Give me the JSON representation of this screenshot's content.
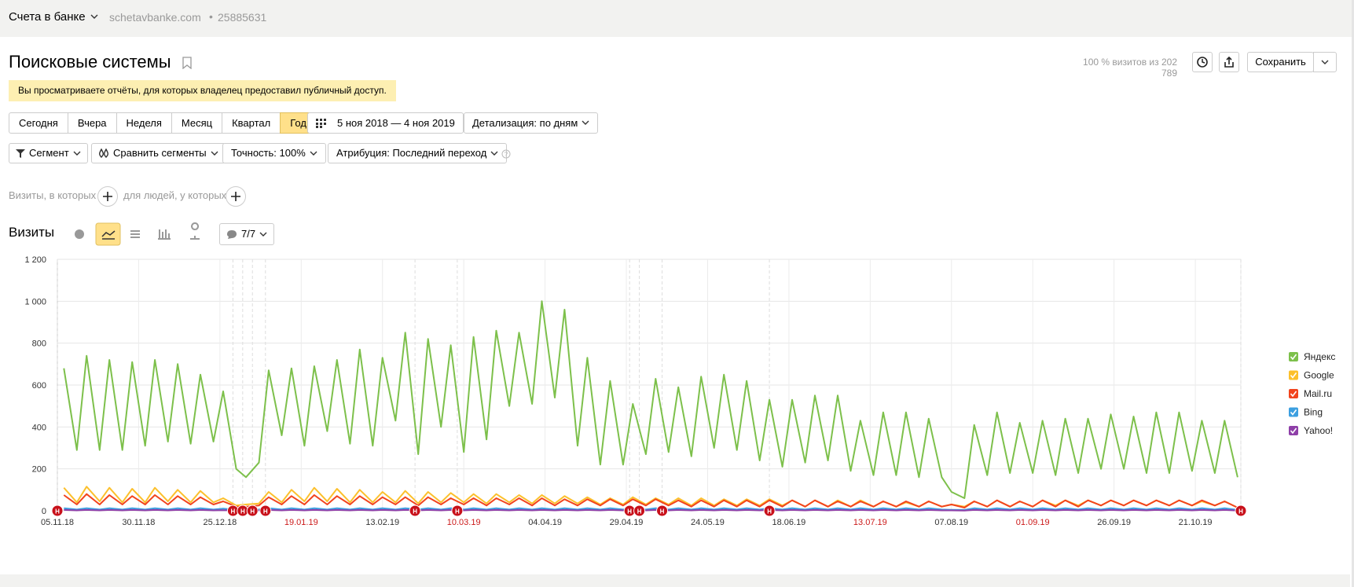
{
  "header": {
    "account": "Счета в банке",
    "site": "schetavbanke.com",
    "counter": "25885631"
  },
  "report": {
    "title": "Поисковые системы",
    "visits_share": "100 % визитов из 202 789",
    "save": "Сохранить",
    "notice": "Вы просматриваете отчёты, для которых владелец предоставил публичный доступ."
  },
  "periods": [
    "Сегодня",
    "Вчера",
    "Неделя",
    "Месяц",
    "Квартал",
    "Год"
  ],
  "active_period": 5,
  "date_range": "5 ноя 2018 — 4 ноя 2019",
  "detail": "Детализация: по дням",
  "filters": [
    "Сегмент",
    "Сравнить сегменты",
    "Точность: 100%",
    "Атрибуция: Последний переход"
  ],
  "segment": {
    "visits_where": "Визиты, в которых",
    "people_where": "для людей, у которых"
  },
  "chart_panel": {
    "metric": "Визиты",
    "annotations_count": "7/7"
  },
  "chart_data": {
    "type": "line",
    "x": [
      2,
      6,
      9,
      13,
      16,
      20,
      23,
      27,
      30,
      34,
      37,
      41,
      44,
      48,
      51,
      55,
      58,
      62,
      65,
      69,
      72,
      76,
      79,
      83,
      86,
      90,
      93,
      97,
      100,
      104,
      107,
      111,
      114,
      118,
      121,
      125,
      128,
      132,
      135,
      139,
      142,
      146,
      149,
      153,
      156,
      160,
      163,
      167,
      170,
      174,
      177,
      181,
      184,
      188,
      191,
      195,
      198,
      202,
      205,
      209,
      212,
      216,
      219,
      223,
      226,
      230,
      233,
      237,
      240,
      244,
      247,
      251,
      254,
      258,
      261,
      265,
      268,
      272,
      275,
      279,
      282,
      286,
      289,
      293,
      296,
      300,
      303,
      307,
      310,
      314,
      317,
      321,
      324,
      328,
      331,
      335,
      338,
      342,
      345,
      349,
      352,
      356,
      359,
      363
    ],
    "xlim": [
      0,
      364
    ],
    "xticks": [
      {
        "value": 0,
        "label": "05.11.18"
      },
      {
        "value": 25,
        "label": "30.11.18"
      },
      {
        "value": 50,
        "label": "25.12.18"
      },
      {
        "value": 75,
        "label": "19.01.19",
        "color": "#cc1a1a"
      },
      {
        "value": 100,
        "label": "13.02.19"
      },
      {
        "value": 125,
        "label": "10.03.19",
        "color": "#cc1a1a"
      },
      {
        "value": 150,
        "label": "04.04.19"
      },
      {
        "value": 175,
        "label": "29.04.19"
      },
      {
        "value": 200,
        "label": "24.05.19"
      },
      {
        "value": 225,
        "label": "18.06.19"
      },
      {
        "value": 250,
        "label": "13.07.19",
        "color": "#cc1a1a"
      },
      {
        "value": 275,
        "label": "07.08.19"
      },
      {
        "value": 300,
        "label": "01.09.19",
        "color": "#cc1a1a"
      },
      {
        "value": 325,
        "label": "26.09.19"
      },
      {
        "value": 350,
        "label": "21.10.19"
      }
    ],
    "ylim": [
      0,
      1200
    ],
    "yticks": [
      0,
      200,
      400,
      600,
      800,
      {
        "value": 1000,
        "label": "1 000"
      },
      {
        "value": 1200,
        "label": "1 200"
      }
    ],
    "grid": true,
    "legend": "right",
    "series": [
      {
        "name": "Яндекс",
        "color": "#7dc04b",
        "values": [
          680,
          290,
          740,
          290,
          720,
          290,
          710,
          310,
          720,
          330,
          700,
          320,
          650,
          330,
          570,
          200,
          160,
          230,
          670,
          360,
          680,
          310,
          690,
          380,
          720,
          320,
          770,
          310,
          730,
          430,
          850,
          270,
          820,
          400,
          790,
          280,
          830,
          340,
          860,
          500,
          850,
          510,
          1000,
          540,
          960,
          310,
          730,
          220,
          620,
          220,
          510,
          270,
          630,
          280,
          590,
          260,
          640,
          300,
          650,
          290,
          620,
          240,
          530,
          210,
          530,
          230,
          550,
          240,
          550,
          190,
          430,
          170,
          470,
          170,
          470,
          160,
          440,
          160,
          90,
          60,
          410,
          170,
          470,
          180,
          420,
          180,
          430,
          170,
          440,
          180,
          440,
          200,
          460,
          200,
          450,
          180,
          470,
          180,
          470,
          190,
          430,
          180,
          430,
          160
        ]
      },
      {
        "name": "Google",
        "color": "#fcc02c",
        "values": [
          110,
          40,
          115,
          45,
          110,
          40,
          105,
          40,
          110,
          45,
          100,
          40,
          95,
          40,
          60,
          25,
          30,
          35,
          90,
          40,
          100,
          45,
          110,
          45,
          105,
          40,
          100,
          40,
          90,
          40,
          95,
          35,
          90,
          40,
          85,
          40,
          80,
          35,
          80,
          40,
          75,
          35,
          75,
          35,
          70,
          35,
          65,
          30,
          60,
          30,
          65,
          30,
          60,
          30,
          60,
          25,
          60,
          25,
          55,
          25,
          55,
          25,
          55,
          25,
          50,
          20,
          50,
          20,
          50,
          20,
          50,
          20,
          45,
          20,
          40,
          20,
          45,
          20,
          30,
          20,
          45,
          20,
          50,
          20,
          45,
          20,
          50,
          25,
          50,
          25,
          50,
          25,
          50,
          25,
          50,
          25,
          50,
          25,
          50,
          25,
          45,
          25,
          45,
          15
        ]
      },
      {
        "name": "Mail.ru",
        "color": "#f2441d",
        "values": [
          75,
          30,
          80,
          30,
          75,
          30,
          70,
          30,
          75,
          30,
          70,
          30,
          65,
          30,
          45,
          20,
          20,
          25,
          65,
          30,
          70,
          30,
          75,
          30,
          70,
          30,
          70,
          30,
          65,
          30,
          65,
          25,
          65,
          30,
          60,
          30,
          60,
          25,
          60,
          30,
          60,
          25,
          60,
          25,
          55,
          25,
          55,
          25,
          55,
          25,
          55,
          25,
          55,
          25,
          50,
          20,
          50,
          20,
          50,
          20,
          50,
          20,
          50,
          20,
          50,
          20,
          50,
          20,
          45,
          20,
          45,
          20,
          45,
          20,
          45,
          20,
          45,
          20,
          30,
          15,
          45,
          20,
          50,
          20,
          45,
          20,
          50,
          20,
          50,
          20,
          50,
          25,
          50,
          25,
          50,
          25,
          50,
          25,
          50,
          25,
          50,
          25,
          45,
          15
        ]
      },
      {
        "name": "Bing",
        "color": "#3c9fe0",
        "values": [
          12,
          6,
          12,
          6,
          12,
          6,
          12,
          6,
          12,
          6,
          12,
          6,
          12,
          6,
          10,
          5,
          5,
          6,
          12,
          6,
          12,
          6,
          12,
          6,
          12,
          6,
          12,
          6,
          12,
          6,
          12,
          6,
          12,
          6,
          12,
          6,
          12,
          6,
          12,
          6,
          12,
          6,
          12,
          6,
          12,
          6,
          12,
          6,
          12,
          6,
          12,
          6,
          12,
          6,
          12,
          6,
          12,
          6,
          12,
          6,
          12,
          6,
          12,
          6,
          12,
          6,
          12,
          6,
          12,
          6,
          12,
          6,
          12,
          6,
          12,
          6,
          12,
          6,
          5,
          4,
          12,
          6,
          12,
          6,
          12,
          6,
          12,
          6,
          12,
          6,
          12,
          6,
          12,
          6,
          12,
          6,
          12,
          6,
          12,
          6,
          12,
          6,
          12,
          4
        ]
      },
      {
        "name": "Yahoo!",
        "color": "#8e3fa8",
        "values": [
          4,
          2,
          4,
          2,
          4,
          2,
          4,
          2,
          4,
          2,
          4,
          2,
          4,
          2,
          3,
          1,
          1,
          2,
          4,
          2,
          4,
          2,
          4,
          2,
          4,
          2,
          4,
          2,
          4,
          2,
          4,
          2,
          4,
          2,
          4,
          2,
          4,
          2,
          4,
          2,
          4,
          2,
          4,
          2,
          4,
          2,
          4,
          2,
          4,
          2,
          4,
          2,
          4,
          2,
          4,
          2,
          4,
          2,
          4,
          2,
          4,
          2,
          4,
          2,
          4,
          2,
          4,
          2,
          4,
          2,
          4,
          2,
          4,
          2,
          4,
          2,
          4,
          2,
          2,
          1,
          4,
          2,
          4,
          2,
          4,
          2,
          4,
          2,
          4,
          2,
          4,
          2,
          4,
          2,
          4,
          2,
          4,
          2,
          4,
          2,
          4,
          2,
          4,
          1
        ]
      }
    ],
    "annotations": [
      {
        "x": 0,
        "text": "Н"
      },
      {
        "x": 54,
        "text": "Н"
      },
      {
        "x": 57,
        "text": "Н"
      },
      {
        "x": 60,
        "text": "Н"
      },
      {
        "x": 64,
        "text": "Н"
      },
      {
        "x": 110,
        "text": "Н"
      },
      {
        "x": 123,
        "text": "Н"
      },
      {
        "x": 176,
        "text": "Н"
      },
      {
        "x": 179,
        "text": "Н"
      },
      {
        "x": 186,
        "text": "Н"
      },
      {
        "x": 219,
        "text": "Н"
      },
      {
        "x": 364,
        "text": "Н"
      }
    ]
  }
}
